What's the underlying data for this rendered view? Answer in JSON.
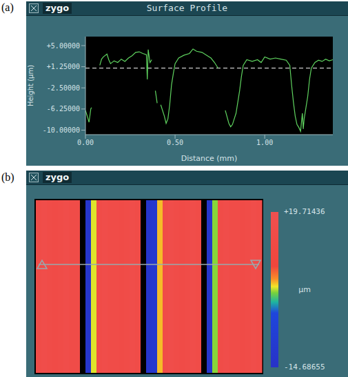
{
  "chart_data": [
    {
      "type": "line",
      "panel": "(a)",
      "logo": "zygo",
      "window_title": "Surface Profile",
      "x_label": "Distance (mm)",
      "y_label": "Height (µm)",
      "color": "#5fd35f",
      "reference_line": 1.0,
      "grid": false,
      "x": [
        0.0,
        0.01,
        0.02,
        0.03,
        0.035,
        0.05,
        0.08,
        0.09,
        0.1,
        0.12,
        0.13,
        0.14,
        0.16,
        0.18,
        0.2,
        0.22,
        0.24,
        0.26,
        0.28,
        0.3,
        0.32,
        0.34,
        0.345,
        0.35,
        0.36,
        0.37,
        0.38,
        0.39,
        0.4,
        0.41,
        0.42,
        0.44,
        0.45,
        0.46,
        0.47,
        0.48,
        0.49,
        0.5,
        0.52,
        0.55,
        0.58,
        0.6,
        0.62,
        0.65,
        0.68,
        0.7,
        0.72,
        0.74,
        0.76,
        0.78,
        0.8,
        0.81,
        0.82,
        0.84,
        0.86,
        0.87,
        0.88,
        0.9,
        0.93,
        0.96,
        0.98,
        1.0,
        1.03,
        1.06,
        1.09,
        1.12,
        1.14,
        1.15,
        1.16,
        1.17,
        1.18,
        1.19,
        1.2,
        1.21,
        1.215,
        1.22,
        1.23,
        1.24,
        1.25,
        1.26,
        1.28,
        1.3,
        1.32,
        1.34,
        1.36,
        1.38
      ],
      "values": [
        -6.5,
        -7.5,
        -8.6,
        -6.2,
        -6.0,
        null,
        1.5,
        2.6,
        3.0,
        3.5,
        2.5,
        1.8,
        2.3,
        2.0,
        2.6,
        2.2,
        2.8,
        3.2,
        3.8,
        3.9,
        3.6,
        3.4,
        -1.0,
        4.3,
        2.0,
        2.5,
        null,
        -3.0,
        -5.2,
        null,
        -5.5,
        -7.5,
        -8.8,
        -8.0,
        -5.5,
        -2.0,
        0.0,
        1.8,
        2.8,
        3.3,
        3.6,
        4.4,
        4.0,
        3.8,
        3.2,
        2.8,
        2.0,
        1.0,
        null,
        -6.5,
        -8.8,
        -9.4,
        -9.0,
        -7.0,
        -3.0,
        -0.5,
        1.5,
        2.5,
        2.2,
        2.5,
        2.0,
        3.0,
        2.6,
        2.8,
        2.6,
        2.4,
        1.5,
        -2.0,
        -5.0,
        -7.5,
        -9.0,
        -9.5,
        -10.2,
        -7.0,
        -9.8,
        -8.0,
        -6.0,
        -4.0,
        -1.0,
        1.0,
        2.0,
        2.4,
        2.2,
        2.6,
        2.3,
        2.5
      ],
      "xlim": [
        0,
        1.38
      ],
      "xticks": [
        {
          "value": 0,
          "label": "0.00"
        },
        {
          "value": 0.5,
          "label": "0.50"
        },
        {
          "value": 1,
          "label": "1.00"
        }
      ],
      "ylim": [
        -10.8,
        6.6
      ],
      "yticks": [
        {
          "value": 5,
          "label": "+5.00000"
        },
        {
          "value": 1.25,
          "label": "+1.25000"
        },
        {
          "value": -2.5,
          "label": "-2.50000"
        },
        {
          "value": -6.25,
          "label": "-6.25000"
        },
        {
          "value": -10,
          "label": "-10.00000"
        }
      ]
    },
    {
      "type": "heatmap",
      "panel": "(b)",
      "logo": "zygo",
      "cells": [
        [
          15,
          16,
          15,
          14,
          15,
          16,
          15,
          15,
          null,
          -12,
          3,
          15,
          16,
          15,
          15,
          14,
          15,
          16,
          15,
          null,
          -12,
          -11,
          4,
          15,
          16,
          15,
          14,
          15,
          16,
          15,
          null,
          -12,
          2,
          15,
          16,
          15,
          15,
          14,
          15,
          16,
          15
        ]
      ],
      "colorbar": {
        "range": [
          -14.68655,
          19.71436
        ],
        "ticks": [
          {
            "value": 19.71436,
            "label": "+19.71436"
          },
          {
            "value": -14.68655,
            "label": "-14.68655"
          }
        ],
        "label": "µm"
      }
    }
  ]
}
